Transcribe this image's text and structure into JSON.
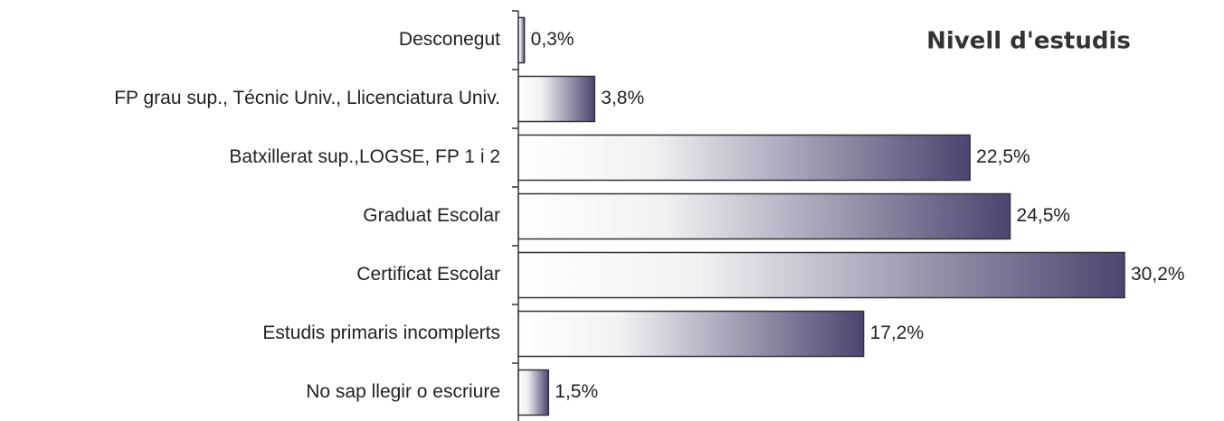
{
  "chart_data": {
    "type": "barh",
    "title": "Nivell d'estudis",
    "categories": [
      "Desconegut",
      "FP grau sup., Técnic Univ., Llicenciatura Univ.",
      "Batxillerat sup.,LOGSE, FP 1 i 2",
      "Graduat Escolar",
      "Certificat Escolar",
      "Estudis primaris incomplerts",
      "No sap llegir o escriure"
    ],
    "values": [
      0.3,
      3.8,
      22.5,
      24.5,
      30.2,
      17.2,
      1.5
    ],
    "value_labels": [
      "0,3%",
      "3,8%",
      "22,5%",
      "24,5%",
      "30,2%",
      "17,2%",
      "1,5%"
    ],
    "color": "#4b4570"
  }
}
